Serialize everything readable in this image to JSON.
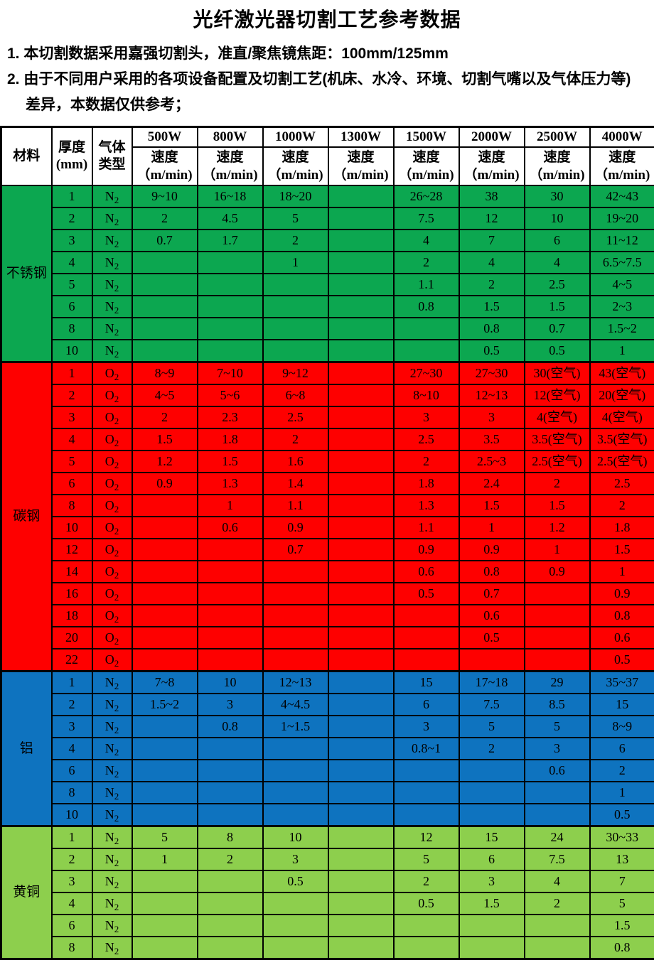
{
  "title": "光纤激光器切割工艺参考数据",
  "notes": [
    {
      "num": "1.",
      "text": "本切割数据采用嘉强切割头，准直/聚焦镜焦距：100mm/125mm"
    },
    {
      "num": "2.",
      "text": "由于不同用户采用的各项设备配置及切割工艺(机床、水冷、环境、切割气嘴以及气体压力等)差异，本数据仅供参考；"
    }
  ],
  "table": {
    "col_headers": {
      "material": "材料",
      "thickness_line1": "厚度",
      "thickness_line2": "(mm)",
      "gas_line1": "气体",
      "gas_line2": "类型"
    },
    "power_columns": [
      "500W",
      "800W",
      "1000W",
      "1300W",
      "1500W",
      "2000W",
      "2500W",
      "4000W"
    ],
    "speed_label": "速度",
    "speed_unit": "（m/min)",
    "sections": [
      {
        "material": "不锈钢",
        "color": "#0CA750",
        "rows": [
          {
            "thickness": "1",
            "gas": "N2",
            "speeds": [
              "9~10",
              "16~18",
              "18~20",
              "",
              "26~28",
              "38",
              "30",
              "42~43"
            ]
          },
          {
            "thickness": "2",
            "gas": "N2",
            "speeds": [
              "2",
              "4.5",
              "5",
              "",
              "7.5",
              "12",
              "10",
              "19~20"
            ]
          },
          {
            "thickness": "3",
            "gas": "N2",
            "speeds": [
              "0.7",
              "1.7",
              "2",
              "",
              "4",
              "7",
              "6",
              "11~12"
            ]
          },
          {
            "thickness": "4",
            "gas": "N2",
            "speeds": [
              "",
              "",
              "1",
              "",
              "2",
              "4",
              "4",
              "6.5~7.5"
            ]
          },
          {
            "thickness": "5",
            "gas": "N2",
            "speeds": [
              "",
              "",
              "",
              "",
              "1.1",
              "2",
              "2.5",
              "4~5"
            ]
          },
          {
            "thickness": "6",
            "gas": "N2",
            "speeds": [
              "",
              "",
              "",
              "",
              "0.8",
              "1.5",
              "1.5",
              "2~3"
            ]
          },
          {
            "thickness": "8",
            "gas": "N2",
            "speeds": [
              "",
              "",
              "",
              "",
              "",
              "0.8",
              "0.7",
              "1.5~2"
            ]
          },
          {
            "thickness": "10",
            "gas": "N2",
            "speeds": [
              "",
              "",
              "",
              "",
              "",
              "0.5",
              "0.5",
              "1"
            ]
          }
        ]
      },
      {
        "material": "碳钢",
        "color": "#FE0000",
        "rows": [
          {
            "thickness": "1",
            "gas": "O2",
            "speeds": [
              "8~9",
              "7~10",
              "9~12",
              "",
              "27~30",
              "27~30",
              "30(空气)",
              "43(空气)"
            ]
          },
          {
            "thickness": "2",
            "gas": "O2",
            "speeds": [
              "4~5",
              "5~6",
              "6~8",
              "",
              "8~10",
              "12~13",
              "12(空气)",
              "20(空气)"
            ]
          },
          {
            "thickness": "3",
            "gas": "O2",
            "speeds": [
              "2",
              "2.3",
              "2.5",
              "",
              "3",
              "3",
              "4(空气)",
              "4(空气)"
            ]
          },
          {
            "thickness": "4",
            "gas": "O2",
            "speeds": [
              "1.5",
              "1.8",
              "2",
              "",
              "2.5",
              "3.5",
              "3.5(空气)",
              "3.5(空气)"
            ]
          },
          {
            "thickness": "5",
            "gas": "O2",
            "speeds": [
              "1.2",
              "1.5",
              "1.6",
              "",
              "2",
              "2.5~3",
              "2.5(空气)",
              "2.5(空气)"
            ]
          },
          {
            "thickness": "6",
            "gas": "O2",
            "speeds": [
              "0.9",
              "1.3",
              "1.4",
              "",
              "1.8",
              "2.4",
              "2",
              "2.5"
            ]
          },
          {
            "thickness": "8",
            "gas": "O2",
            "speeds": [
              "",
              "1",
              "1.1",
              "",
              "1.3",
              "1.5",
              "1.5",
              "2"
            ]
          },
          {
            "thickness": "10",
            "gas": "O2",
            "speeds": [
              "",
              "0.6",
              "0.9",
              "",
              "1.1",
              "1",
              "1.2",
              "1.8"
            ]
          },
          {
            "thickness": "12",
            "gas": "O2",
            "speeds": [
              "",
              "",
              "0.7",
              "",
              "0.9",
              "0.9",
              "1",
              "1.5"
            ]
          },
          {
            "thickness": "14",
            "gas": "O2",
            "speeds": [
              "",
              "",
              "",
              "",
              "0.6",
              "0.8",
              "0.9",
              "1"
            ]
          },
          {
            "thickness": "16",
            "gas": "O2",
            "speeds": [
              "",
              "",
              "",
              "",
              "0.5",
              "0.7",
              "",
              "0.9"
            ]
          },
          {
            "thickness": "18",
            "gas": "O2",
            "speeds": [
              "",
              "",
              "",
              "",
              "",
              "0.6",
              "",
              "0.8"
            ]
          },
          {
            "thickness": "20",
            "gas": "O2",
            "speeds": [
              "",
              "",
              "",
              "",
              "",
              "0.5",
              "",
              "0.6"
            ]
          },
          {
            "thickness": "22",
            "gas": "O2",
            "speeds": [
              "",
              "",
              "",
              "",
              "",
              "",
              "",
              "0.5"
            ]
          }
        ]
      },
      {
        "material": "铝",
        "color": "#0E73BF",
        "rows": [
          {
            "thickness": "1",
            "gas": "N2",
            "speeds": [
              "7~8",
              "10",
              "12~13",
              "",
              "15",
              "17~18",
              "29",
              "35~37"
            ]
          },
          {
            "thickness": "2",
            "gas": "N2",
            "speeds": [
              "1.5~2",
              "3",
              "4~4.5",
              "",
              "6",
              "7.5",
              "8.5",
              "15"
            ]
          },
          {
            "thickness": "3",
            "gas": "N2",
            "speeds": [
              "",
              "0.8",
              "1~1.5",
              "",
              "3",
              "5",
              "5",
              "8~9"
            ]
          },
          {
            "thickness": "4",
            "gas": "N2",
            "speeds": [
              "",
              "",
              "",
              "",
              "0.8~1",
              "2",
              "3",
              "6"
            ]
          },
          {
            "thickness": "6",
            "gas": "N2",
            "speeds": [
              "",
              "",
              "",
              "",
              "",
              "",
              "0.6",
              "2"
            ]
          },
          {
            "thickness": "8",
            "gas": "N2",
            "speeds": [
              "",
              "",
              "",
              "",
              "",
              "",
              "",
              "1"
            ]
          },
          {
            "thickness": "10",
            "gas": "N2",
            "speeds": [
              "",
              "",
              "",
              "",
              "",
              "",
              "",
              "0.5"
            ]
          }
        ]
      },
      {
        "material": "黄铜",
        "color": "#8DCF4D",
        "rows": [
          {
            "thickness": "1",
            "gas": "N2",
            "speeds": [
              "5",
              "8",
              "10",
              "",
              "12",
              "15",
              "24",
              "30~33"
            ]
          },
          {
            "thickness": "2",
            "gas": "N2",
            "speeds": [
              "1",
              "2",
              "3",
              "",
              "5",
              "6",
              "7.5",
              "13"
            ]
          },
          {
            "thickness": "3",
            "gas": "N2",
            "speeds": [
              "",
              "",
              "0.5",
              "",
              "2",
              "3",
              "4",
              "7"
            ]
          },
          {
            "thickness": "4",
            "gas": "N2",
            "speeds": [
              "",
              "",
              "",
              "",
              "0.5",
              "1.5",
              "2",
              "5"
            ]
          },
          {
            "thickness": "6",
            "gas": "N2",
            "speeds": [
              "",
              "",
              "",
              "",
              "",
              "",
              "",
              "1.5"
            ]
          },
          {
            "thickness": "8",
            "gas": "N2",
            "speeds": [
              "",
              "",
              "",
              "",
              "",
              "",
              "",
              "0.8"
            ]
          }
        ]
      }
    ]
  }
}
